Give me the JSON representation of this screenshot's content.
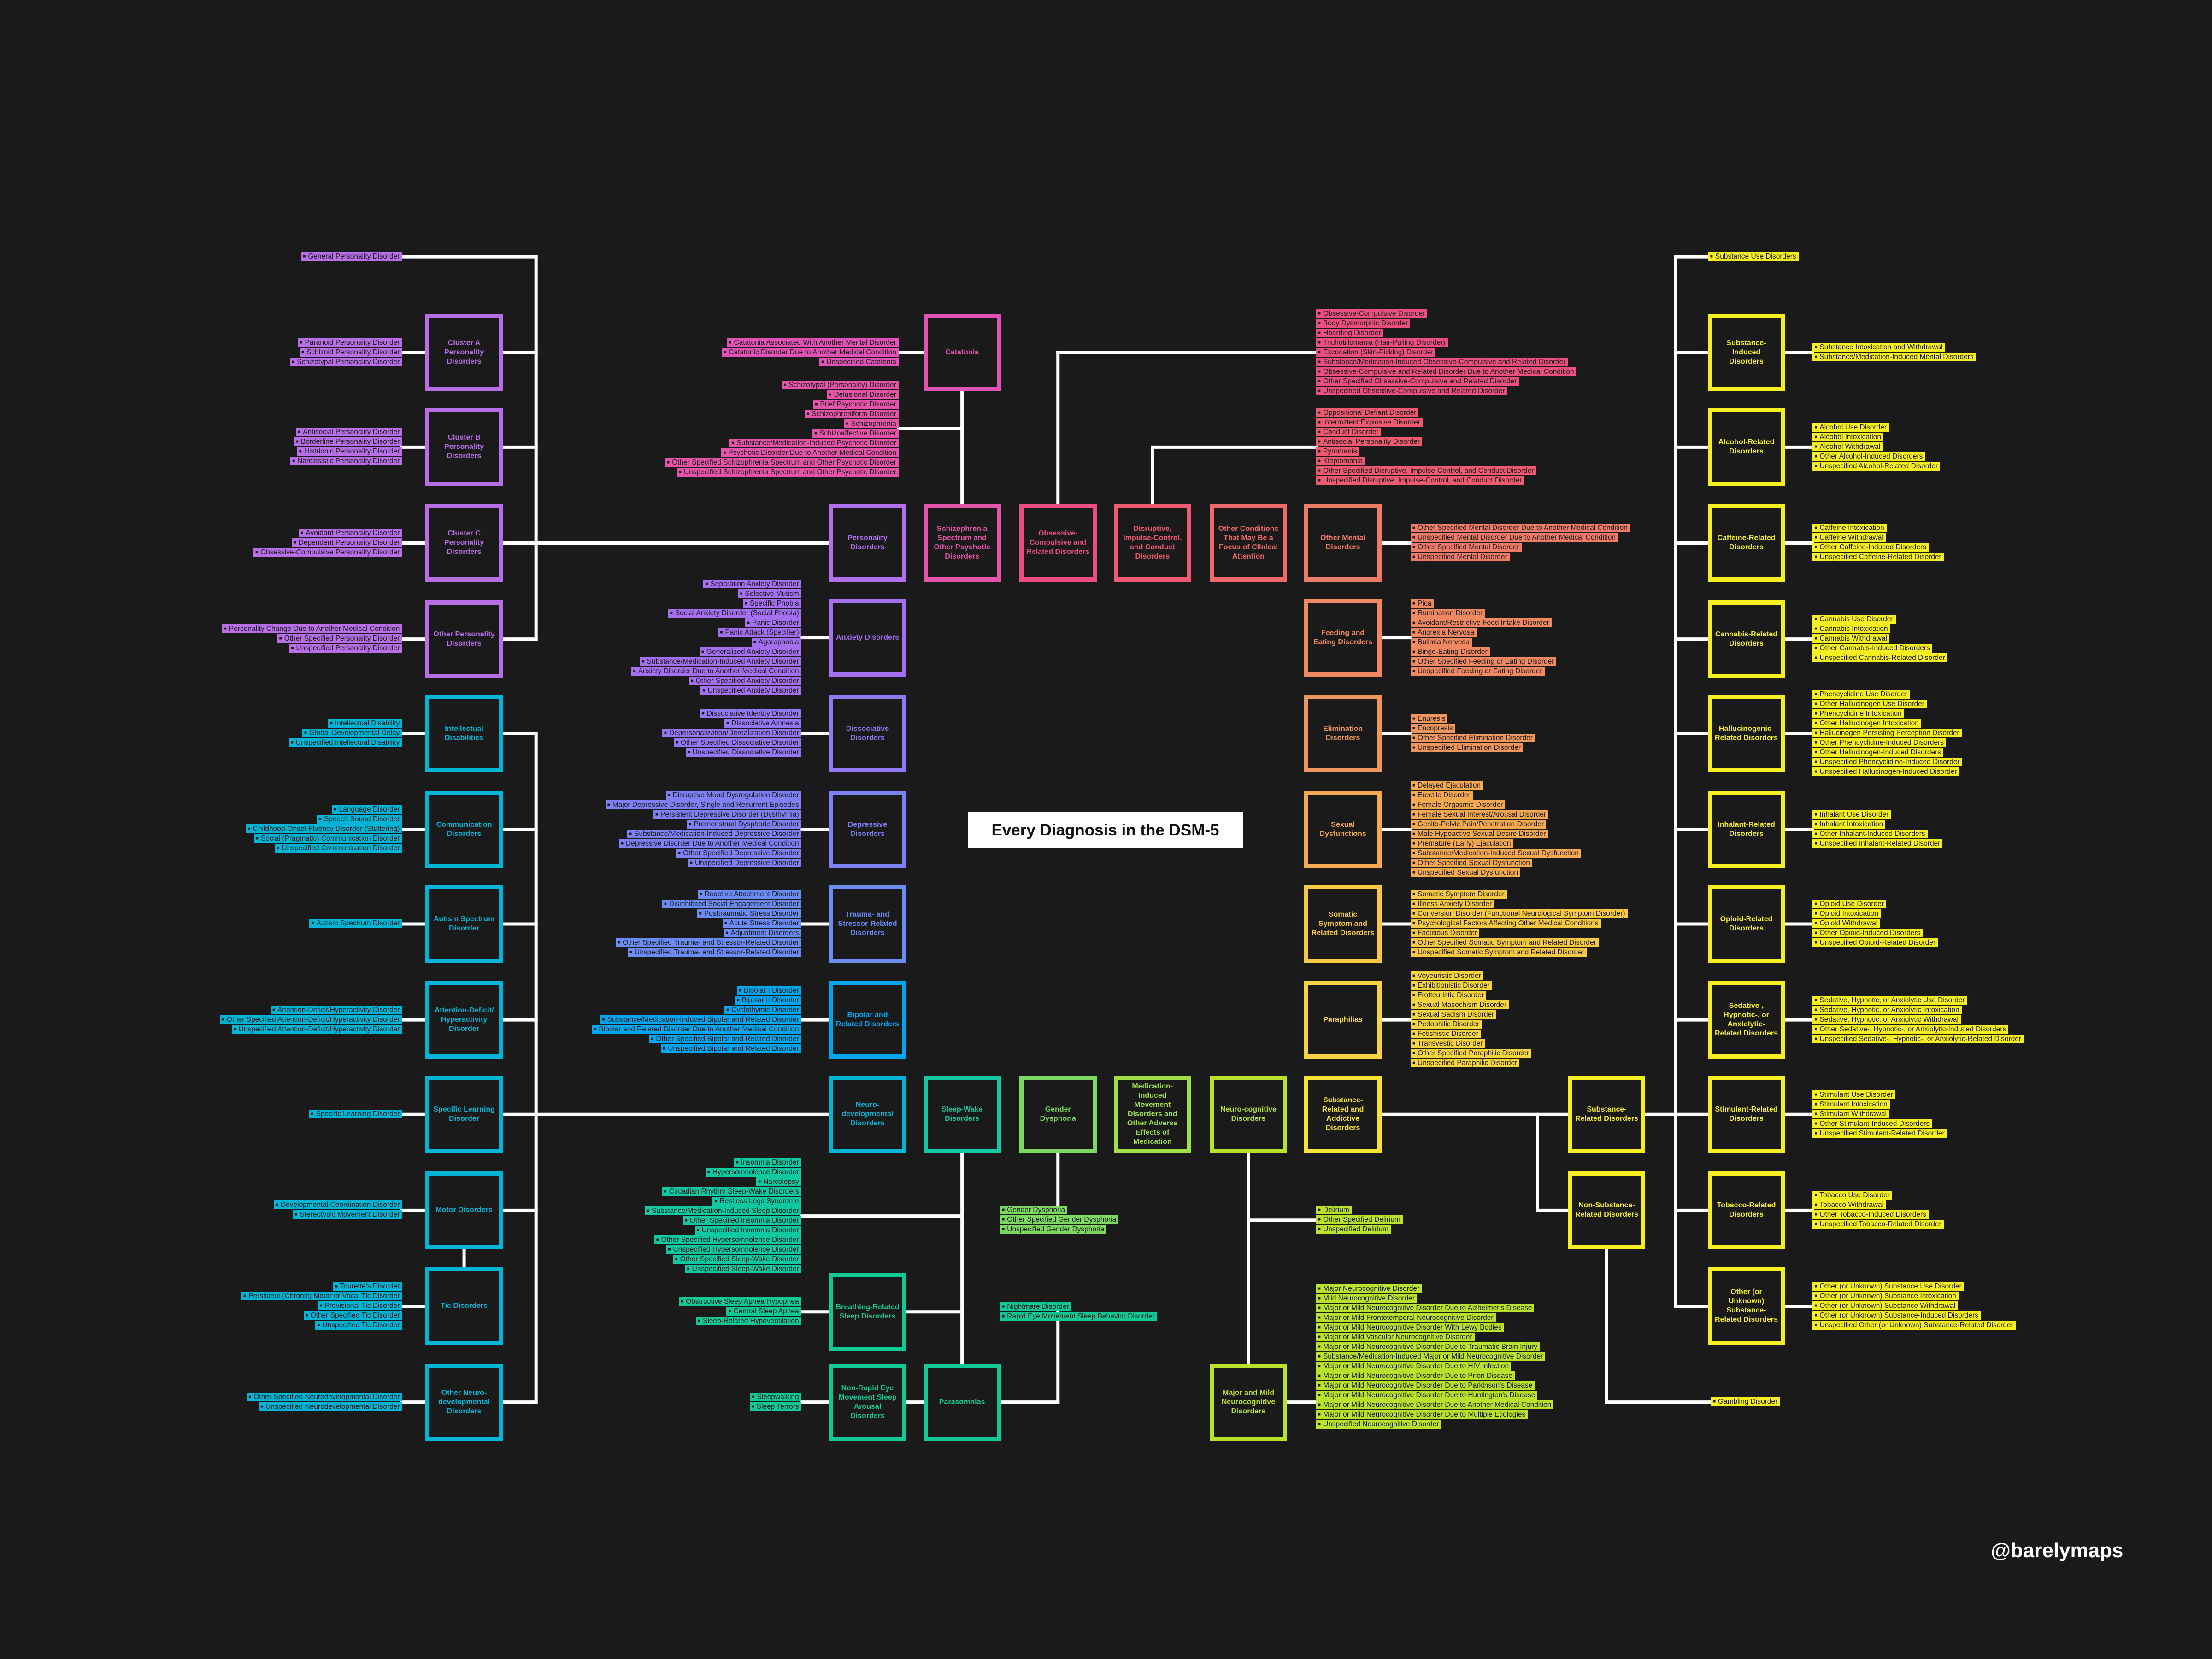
{
  "title": "Every Diagnosis in the DSM-5",
  "credit": "@barelymaps",
  "groups": {
    "general_personality": {
      "color": "#b86ee6",
      "items": [
        "General Personality Disorder"
      ]
    },
    "cluster_a": {
      "label": "Cluster A Personality Disorders",
      "color": "#b86ee6",
      "items": [
        "Paranoid Personality Disorder",
        "Schizoid Personality Disorder",
        "Schizotypal Personality Disorder"
      ]
    },
    "cluster_b": {
      "label": "Cluster B Personality Disorders",
      "color": "#b86ee6",
      "items": [
        "Antisocial Personality Disorder",
        "Borderline Personality Disorder",
        "Histrionic Personality Disorder",
        "Narcissistic Personality Disorder"
      ]
    },
    "cluster_c": {
      "label": "Cluster C Personality Disorders",
      "color": "#b86ee6",
      "items": [
        "Avoidant Personality Disorder",
        "Dependent Personality Disorder",
        "Obsessive-Compulsive Personality Disorder"
      ]
    },
    "other_personality": {
      "label": "Other Personality Disorders",
      "color": "#b86ee6",
      "items": [
        "Personality Change Due to Another Medical Condition",
        "Other Specified Personality Disorder",
        "Unspecified Personality Disorder"
      ]
    },
    "intellectual": {
      "label": "Intellectual Disabilities",
      "color": "#00b4d6",
      "items": [
        "Intellectual Disability",
        "Global Developmental Delay",
        "Unspecified Intellectual Disability"
      ]
    },
    "communication": {
      "label": "Communication Disorders",
      "color": "#00b4d6",
      "items": [
        "Language Disorder",
        "Speech Sound Disorder",
        "Childhood-Onset Fluency Disorder (Stuttering)",
        "Social (Pragmatic) Communication Disorder",
        "Unspecified Communication Disorder"
      ]
    },
    "autism": {
      "label": "Autism Spectrum Disorder",
      "color": "#00b4d6",
      "items": [
        "Autism Spectrum Disorder"
      ]
    },
    "adhd": {
      "label": "Attention-Deficit/ Hyperactivity Disorder",
      "color": "#00b4d6",
      "items": [
        "Attention-Deficit/Hyperactivity Disorder",
        "Other Specified Attention-Deficit/Hyperactivity Disorder",
        "Unspecified Attention-Deficit/Hyperactivity Disorder"
      ]
    },
    "learning": {
      "label": "Specific Learning Disorder",
      "color": "#00b4d6",
      "items": [
        "Specific Learning Disorder"
      ]
    },
    "motor": {
      "label": "Motor Disorders",
      "color": "#00b4d6",
      "items": [
        "Developmental Coordination Disorder",
        "Stereotypic Movement Disorder"
      ]
    },
    "tic": {
      "label": "Tic Disorders",
      "color": "#00b4d6",
      "items": [
        "Tourette's Disorder",
        "Persistent (Chronic) Motor or Vocal Tic Disorder",
        "Provisional Tic Disorder",
        "Other Specified Tic Disorder",
        "Unspecified Tic Disorder"
      ]
    },
    "other_neurodev": {
      "label": "Other Neuro-developmental Disorders",
      "color": "#00b4d6",
      "items": [
        "Other Specified Neurodevelopmental Disorder",
        "Unspecified Neurodevelopmental Disorder"
      ]
    },
    "personality": {
      "label": "Personality Disorders",
      "color": "#b26ff0"
    },
    "anxiety": {
      "label": "Anxiety Disorders",
      "color": "#a46ff0",
      "items": [
        "Separation Anxiety Disorder",
        "Selective Mutism",
        "Specific Phobia",
        "Social Anxiety Disorder (Social Phobia)",
        "Panic Disorder",
        "Panic Attack (Specifier)",
        "Agoraphobia",
        "Generalized Anxiety Disorder",
        "Substance/Medication-Induced Anxiety Disorder",
        "Anxiety Disorder Due to Another Medical Condition",
        "Other Specified Anxiety Disorder",
        "Unspecified Anxiety Disorder"
      ]
    },
    "dissociative": {
      "label": "Dissociative Disorders",
      "color": "#9278f5",
      "items": [
        "Dissociative Identity Disorder",
        "Dissociative Amnesia",
        "Depersonalization/Derealization Disorder",
        "Other Specified Dissociative Disorder",
        "Unspecified Dissociative Disorder"
      ]
    },
    "depressive": {
      "label": "Depressive Disorders",
      "color": "#7e80f5",
      "items": [
        "Disruptive Mood Dysregulation Disorder",
        "Major Depressive Disorder, Single and Recurrent Episodes",
        "Persistent Depressive Disorder (Dysthymia)",
        "Premenstrual Dysphoric Disorder",
        "Substance/Medication-Induced Depressive Disorder",
        "Depressive Disorder Due to Another Medical Condition",
        "Other Specified Depressive Disorder",
        "Unspecified Depressive Disorder"
      ]
    },
    "trauma": {
      "label": "Trauma- and Stressor-Related Disorders",
      "color": "#6a8cf4",
      "items": [
        "Reactive Attachment Disorder",
        "Disinhibited Social Engagement Disorder",
        "Posttraumatic Stress Disorder",
        "Acute Stress Disorder",
        "Adjustment Disorders",
        "Other Specified Trauma- and Stressor-Related Disorder",
        "Unspecified Trauma- and Stressor-Related Disorder"
      ]
    },
    "bipolar": {
      "label": "Bipolar and Related Disorders",
      "color": "#00a6f0",
      "items": [
        "Bipolar I Disorder",
        "Bipolar II Disorder",
        "Cyclothymic Disorder",
        "Substance/Medication-Induced Bipolar and Related Disorder",
        "Bipolar and Related Disorder Due to Another Medical Condition",
        "Other Specified Bipolar and Related Disorder",
        "Unspecified Bipolar and Related Disorder"
      ]
    },
    "neurodevelopmental": {
      "label": "Neuro-developmental Disorders",
      "color": "#00b4d6"
    },
    "breathing": {
      "label": "Breathing-Related Sleep Disorders",
      "color": "#12c894",
      "items": [
        "Obstructive Sleep Apnea Hypopnea",
        "Central Sleep Apnea",
        "Sleep-Related Hypoventilation"
      ]
    },
    "nrem": {
      "label": "Non-Rapid Eye Movement Sleep Arousal Disorders",
      "color": "#12c894",
      "items": [
        "Sleepwalking",
        "Sleep Terrors"
      ]
    },
    "catatonia": {
      "label": "Catatonia",
      "color": "#e052b6",
      "items": [
        "Catatonia Associated With Another Mental Disorder",
        "Catatonic Disorder Due to Another Medical Condition",
        "Unspecified Catatonia"
      ]
    },
    "schizophrenia": {
      "label": "Schizophrenia Spectrum and Other Psychotic Disorders",
      "color": "#e455aa",
      "items": [
        "Schizotypal (Personality) Disorder",
        "Delusional Disorder",
        "Brief Psychotic Disorder",
        "Schizophreniform Disorder",
        "Schizophrenia",
        "Schizoaffective Disorder",
        "Substance/Medication-Induced Psychotic Disorder",
        "Psychotic Disorder Due to Another Medical Condition",
        "Other Specified Schizophrenia Spectrum and Other Psychotic Disorder",
        "Unspecified Schizophrenia Spectrum and Other Psychotic Disorder"
      ]
    },
    "sleep_wake": {
      "label": "Sleep-Wake Disorders",
      "color": "#10c9a0",
      "items": [
        "Insomnia Disorder",
        "Hypersomnolence Disorder",
        "Narcolepsy",
        "Circadian Rhythm Sleep-Wake Disorders",
        "Restless Legs Syndrome",
        "Substance/Medication-Induced Sleep Disorder",
        "Other Specified Insomnia Disorder",
        "Unspecified Insomnia Disorder",
        "Other Specified Hypersomnolence Disorder",
        "Unspecified Hypersomnolence Disorder",
        "Other Specified Sleep-Wake Disorder",
        "Unspecified Sleep-Wake Disorder"
      ]
    },
    "parasomnias": {
      "label": "Parasomnias",
      "color": "#12c894",
      "items": [
        "Nightmare Disorder",
        "Rapid Eye Movement Sleep Behavior Disorder"
      ]
    },
    "ocd": {
      "label": "Obsessive-Compulsive and Related Disorders",
      "color": "#ea4f80",
      "items": [
        "Obsessive-Compulsive Disorder",
        "Body Dysmorphic Disorder",
        "Hoarding Disorder",
        "Trichotillomania (Hair-Pulling Disorder)",
        "Excoriation (Skin-Picking) Disorder",
        "Substance/Medication-Induced Obsessive-Compulsive and Related Disorder",
        "Obsessive-Compulsive and Related Disorder Due to Another Medical Condition",
        "Other Specified Obsessive-Compulsive and Related Disorder",
        "Unspecified Obsessive-Compulsive and Related Disorder"
      ]
    },
    "gender": {
      "label": "Gender Dysphoria",
      "color": "#7cd860",
      "items": [
        "Gender Dysphoria",
        "Other Specified Gender Dysphoria",
        "Unspecified Gender Dysphoria"
      ]
    },
    "disruptive": {
      "label": "Disruptive, Impulse-Control, and Conduct Disorders",
      "color": "#ee5a70",
      "items": [
        "Oppositional Defiant Disorder",
        "Intermittent Explosive Disorder",
        "Conduct Disorder",
        "Antisocial Personality Disorder",
        "Pyromania",
        "Kleptomania",
        "Other Specified Disruptive, Impulse-Control, and Conduct Disorder",
        "Unspecified Disruptive, Impulse-Control, and Conduct Disorder"
      ]
    },
    "medication": {
      "label": "Medication-Induced Movement Disorders and Other Adverse Effects of Medication",
      "color": "#9ee045"
    },
    "other_conditions": {
      "label": "Other Conditions That May Be a Focus of Clinical Attention",
      "color": "#f06a6a"
    },
    "neurocognitive": {
      "label": "Neuro-cognitive Disorders",
      "color": "#b8e22e",
      "items": [
        "Delirium",
        "Other Specified Delirium",
        "Unspecified Delirium"
      ]
    },
    "major_mild": {
      "label": "Major and Mild Neurocognitive Disorders",
      "color": "#b8e22e",
      "items": [
        "Major Neurocognitive Disorder",
        "Mild Neurocognitive Disorder",
        "Major or Mild Neurocognitive Disorder Due to Alzheimer's Disease",
        "Major or Mild Frontotemporal Neurocognitive Disorder",
        "Major or Mild Neurocognitive Disorder With Lewy Bodies",
        "Major or Mild Vascular Neurocognitive Disorder",
        "Major or Mild Neurocognitive Disorder Due to Traumatic Brain Injury",
        "Substance/Medication-Induced Major or Mild Neurocognitive Disorder",
        "Major or Mild Neurocognitive Disorder Due to HIV Infection",
        "Major or Mild Neurocognitive Disorder Due to Prion Disease",
        "Major or Mild Neurocognitive Disorder Due to Parkinson's Disease",
        "Major or Mild Neurocognitive Disorder Due to Huntington's Disease",
        "Major or Mild Neurocognitive Disorder Due to Another Medical Condition",
        "Major or Mild Neurocognitive Disorder Due to Multiple Etiologies",
        "Unspecified Neurocognitive Disorder"
      ]
    },
    "other_mental": {
      "label": "Other Mental Disorders",
      "color": "#f07a68",
      "items": [
        "Other Specified Mental Disorder Due to Another Medical Condition",
        "Unspecified Mental Disorder Due to Another Medical Condition",
        "Other Specified Mental Disorder",
        "Unspecified Mental Disorder"
      ]
    },
    "feeding": {
      "label": "Feeding and Eating Disorders",
      "color": "#f08862",
      "items": [
        "Pica",
        "Rumination Disorder",
        "Avoidant/Restrictive Food Intake Disorder",
        "Anorexia Nervosa",
        "Bulimia Nervosa",
        "Binge-Eating Disorder",
        "Other Specified Feeding or Eating Disorder",
        "Unspecified Feeding or Eating Disorder"
      ]
    },
    "elimination": {
      "label": "Elimination Disorders",
      "color": "#ef965c",
      "items": [
        "Enuresis",
        "Encopresis",
        "Other Specified Elimination Disorder",
        "Unspecified Elimination Disorder"
      ]
    },
    "sexual": {
      "label": "Sexual Dysfunctions",
      "color": "#f5aa52",
      "items": [
        "Delayed Ejaculation",
        "Erectile Disorder",
        "Female Orgasmic Disorder",
        "Female Sexual Interest/Arousal Disorder",
        "Genito-Pelvic Pain/Penetration Disorder",
        "Male Hypoactive Sexual Desire Disorder",
        "Premature (Early) Ejaculation",
        "Substance/Medication-Induced Sexual Dysfunction",
        "Other Specified Sexual Dysfunction",
        "Unspecified Sexual Dysfunction"
      ]
    },
    "somatic": {
      "label": "Somatic Symptom and Related Disorders",
      "color": "#f7c843",
      "items": [
        "Somatic Symptom Disorder",
        "Illness Anxiety Disorder",
        "Conversion Disorder (Functional Neurological Symptom Disorder)",
        "Psychological Factors Affecting Other Medical Conditions",
        "Factitious Disorder",
        "Other Specified Somatic Symptom and Related Disorder",
        "Unspecified Somatic Symptom and Related Disorder"
      ]
    },
    "paraphilias": {
      "label": "Paraphilias",
      "color": "#f7d540",
      "items": [
        "Voyeuristic Disorder",
        "Exhibitionistic Disorder",
        "Frotteuristic Disorder",
        "Sexual Masochism Disorder",
        "Sexual Sadism Disorder",
        "Pedophilic Disorder",
        "Fetishistic Disorder",
        "Transvestic Disorder",
        "Other Specified Paraphilic Disorder",
        "Unspecified Paraphilic Disorder"
      ]
    },
    "substance_addictive": {
      "label": "Substance-Related and Addictive Disorders",
      "color": "#f6e233"
    },
    "substance_related": {
      "label": "Substance-Related Disorders",
      "color": "#f5ee22"
    },
    "non_substance": {
      "label": "Non-Substance-Related Disorders",
      "color": "#f5ee22",
      "items": [
        "Gambling Disorder"
      ]
    },
    "substance_use": {
      "color": "#f5ee22",
      "items": [
        "Substance Use Disorders"
      ]
    },
    "substance_induced": {
      "label": "Substance-Induced Disorders",
      "color": "#f5ee22",
      "items": [
        "Substance Intoxication and Withdrawal",
        "Substance/Medication-Induced Mental Disorders"
      ]
    },
    "alcohol": {
      "label": "Alcohol-Related Disorders",
      "color": "#f5ee22",
      "items": [
        "Alcohol Use Disorder",
        "Alcohol Intoxication",
        "Alcohol Withdrawal",
        "Other Alcohol-Induced Disorders",
        "Unspecified Alcohol-Related Disorder"
      ]
    },
    "caffeine": {
      "label": "Caffeine-Related Disorders",
      "color": "#f5ee22",
      "items": [
        "Caffeine Intoxication",
        "Caffeine Withdrawal",
        "Other Caffeine-Induced Disorders",
        "Unspecified Caffeine-Related Disorder"
      ]
    },
    "cannabis": {
      "label": "Cannabis-Related Disorders",
      "color": "#f5ee22",
      "items": [
        "Cannabis Use Disorder",
        "Cannabis Intoxication",
        "Cannabis Withdrawal",
        "Other Cannabis-Induced Disorders",
        "Unspecified Cannabis-Related Disorder"
      ]
    },
    "hallucinogen": {
      "label": "Hallucinogenic-Related Disorders",
      "color": "#f5ee22",
      "items": [
        "Phencyclidine Use Disorder",
        "Other Hallucinogen Use Disorder",
        "Phencyclidine Intoxication",
        "Other Hallucinogen Intoxication",
        "Hallucinogen Persisting Perception Disorder",
        "Other Phencyclidine-Induced Disorders",
        "Other Hallucinogen-Induced Disorders",
        "Unspecified Phencyclidine-Induced Disorder",
        "Unspecified Hallucinogen-Induced Disorder"
      ]
    },
    "inhalant": {
      "label": "Inhalant-Related Disorders",
      "color": "#f5ee22",
      "items": [
        "Inhalant Use Disorder",
        "Inhalant Intoxication",
        "Other Inhalant-Induced Disorders",
        "Unspecified Inhalant-Related Disorder"
      ]
    },
    "opioid": {
      "label": "Opioid-Related Disorders",
      "color": "#f5ee22",
      "items": [
        "Opioid Use Disorder",
        "Opioid Intoxication",
        "Opioid Withdrawal",
        "Other Opioid-Induced Disorders",
        "Unspecified Opioid-Related Disorder"
      ]
    },
    "sedative": {
      "label": "Sedative-, Hypnotic-, or Anxiolytic-Related Disorders",
      "color": "#f5ee22",
      "items": [
        "Sedative, Hypnotic, or Anxiolytic Use Disorder",
        "Sedative, Hypnotic, or Anxiolytic Intoxication",
        "Sedative, Hypnotic, or Anxiolytic Withdrawal",
        "Other Sedative-, Hypnotic-, or Anxiolytic-Induced Disorders",
        "Unspecified Sedative-, Hypnotic-, or Anxiolytic-Related Disorder"
      ]
    },
    "stimulant": {
      "label": "Stimulant-Related Disorders",
      "color": "#f5ee22",
      "items": [
        "Stimulant Use Disorder",
        "Stimulant Intoxication",
        "Stimulant Withdrawal",
        "Other Stimulant-Induced Disorders",
        "Unspecified Stimulant-Related Disorder"
      ]
    },
    "tobacco": {
      "label": "Tobacco-Related Disorders",
      "color": "#f5ee22",
      "items": [
        "Tobacco Use Disorder",
        "Tobacco Withdrawal",
        "Other Tobacco-Induced Disorders",
        "Unspecified Tobacco-Related Disorder"
      ]
    },
    "other_substance": {
      "label": "Other (or Unknown) Substance-Related Disorders",
      "color": "#f5ee22",
      "items": [
        "Other (or Unknown) Substance Use Disorder",
        "Other (or Unknown) Substance Intoxication",
        "Other (or Unknown) Substance Withdrawal",
        "Other (or Unknown) Substance-Induced Disorders",
        "Unspecified Other (or Unknown) Substance-Related Disorder"
      ]
    }
  }
}
